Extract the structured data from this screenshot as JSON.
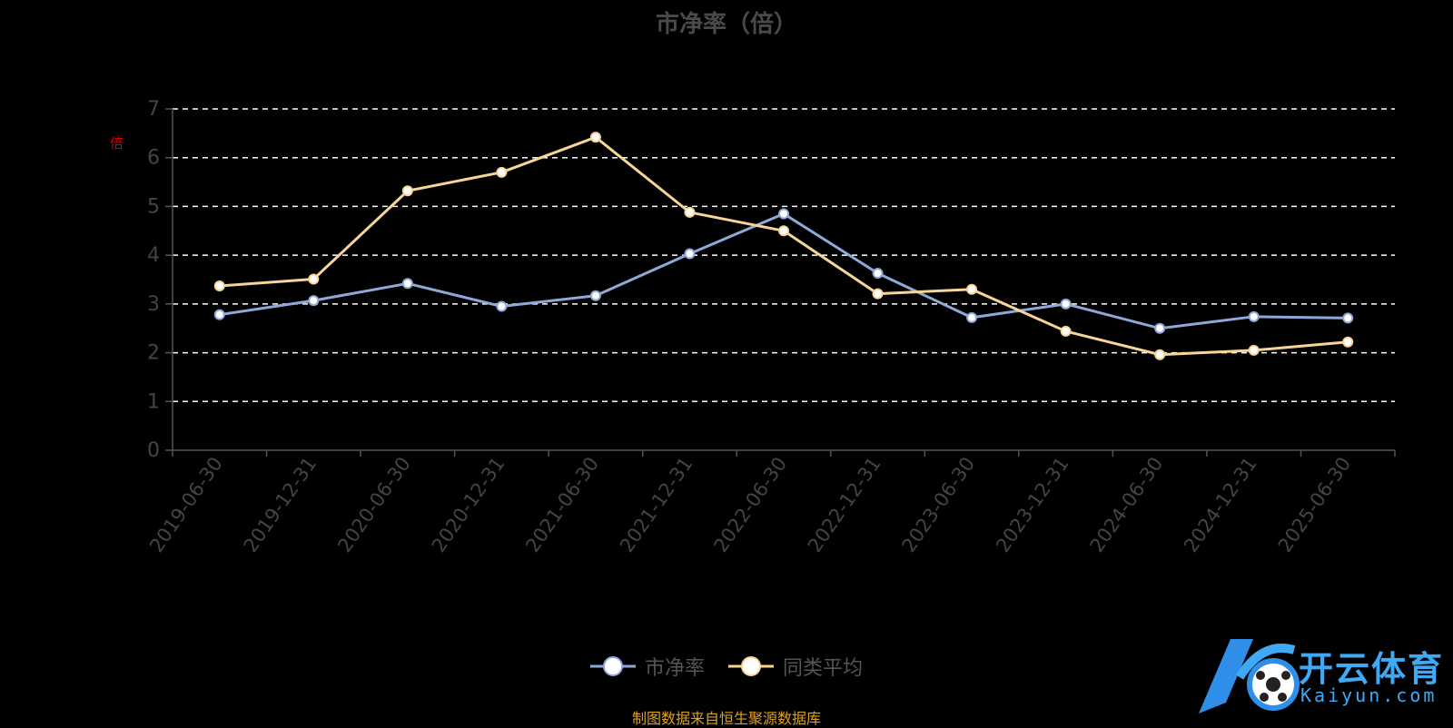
{
  "page": {
    "source_note": "制图数据来自恒生聚源数据库"
  },
  "logo": {
    "text": "开云体育",
    "sub": "Kaiyun.com"
  },
  "chart_data": {
    "type": "line",
    "title": "市净率（倍）",
    "ylabel": "倍",
    "ylim": [
      0,
      7
    ],
    "yticks": [
      0,
      1,
      2,
      3,
      4,
      5,
      6,
      7
    ],
    "grid": true,
    "legend_position": "bottom",
    "categories": [
      "2019-06-30",
      "2019-12-31",
      "2020-06-30",
      "2020-12-31",
      "2021-06-30",
      "2021-12-31",
      "2022-06-30",
      "2022-12-31",
      "2023-06-30",
      "2023-12-31",
      "2024-06-30",
      "2024-12-31",
      "2025-06-30"
    ],
    "series": [
      {
        "name": "市净率",
        "color": "#8fa8d8",
        "values": [
          2.78,
          3.07,
          3.42,
          2.95,
          3.17,
          4.03,
          4.85,
          3.63,
          2.72,
          3.0,
          2.5,
          2.74,
          2.71
        ]
      },
      {
        "name": "同类平均",
        "color": "#f6d596",
        "values": [
          3.37,
          3.51,
          5.32,
          5.7,
          6.42,
          4.88,
          4.5,
          3.21,
          3.3,
          2.44,
          1.96,
          2.05,
          2.22
        ]
      }
    ]
  }
}
